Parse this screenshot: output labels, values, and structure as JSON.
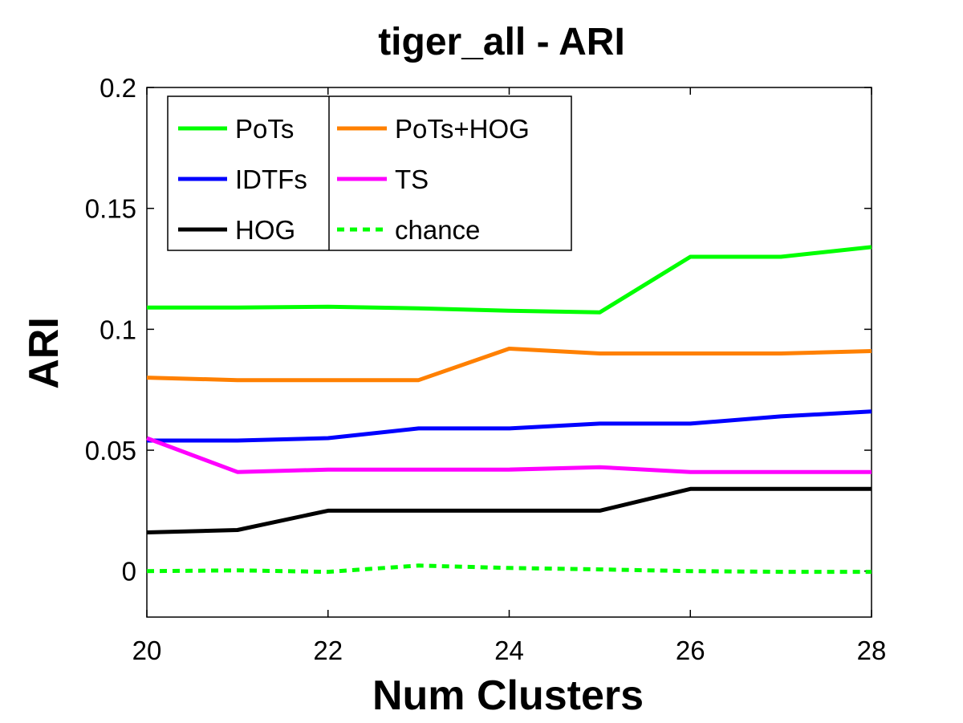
{
  "chart_data": {
    "type": "line",
    "title": "tiger_all - ARI",
    "xlabel": "Num Clusters",
    "ylabel": "ARI",
    "xlim": [
      20,
      28
    ],
    "ylim": [
      -0.019,
      0.2
    ],
    "x_ticks": [
      "20",
      "22",
      "24",
      "26",
      "28"
    ],
    "y_ticks": [
      "0",
      "0.05",
      "0.1",
      "0.15",
      "0.2"
    ],
    "x_tick_values": [
      20,
      22,
      24,
      26,
      28
    ],
    "y_tick_values": [
      0,
      0.05,
      0.1,
      0.15,
      0.2
    ],
    "grid": false,
    "legend_position": "top-left",
    "x": [
      20,
      21,
      22,
      23,
      24,
      25,
      26,
      27,
      28
    ],
    "series": [
      {
        "name": "PoTs",
        "color": "#00ff00",
        "dashed": false,
        "values": [
          0.109,
          0.109,
          0.1093,
          0.1087,
          0.1077,
          0.107,
          0.13,
          0.13,
          0.134
        ]
      },
      {
        "name": "IDTFs",
        "color": "#0000ff",
        "dashed": false,
        "values": [
          0.054,
          0.054,
          0.055,
          0.059,
          0.059,
          0.061,
          0.061,
          0.064,
          0.066
        ]
      },
      {
        "name": "HOG",
        "color": "#000000",
        "dashed": false,
        "values": [
          0.016,
          0.017,
          0.025,
          0.025,
          0.025,
          0.025,
          0.034,
          0.034,
          0.034
        ]
      },
      {
        "name": "PoTs+HOG",
        "color": "#ff8000",
        "dashed": false,
        "values": [
          0.08,
          0.079,
          0.079,
          0.079,
          0.092,
          0.09,
          0.09,
          0.09,
          0.091
        ]
      },
      {
        "name": "TS",
        "color": "#ff00ff",
        "dashed": false,
        "values": [
          0.055,
          0.041,
          0.042,
          0.042,
          0.042,
          0.043,
          0.041,
          0.041,
          0.041
        ]
      },
      {
        "name": "chance",
        "color": "#00ff00",
        "dashed": true,
        "values": [
          0.0,
          0.0003,
          -0.0003,
          0.0023,
          0.0013,
          0.0007,
          0.0,
          -0.0003,
          -0.0003
        ]
      }
    ]
  }
}
